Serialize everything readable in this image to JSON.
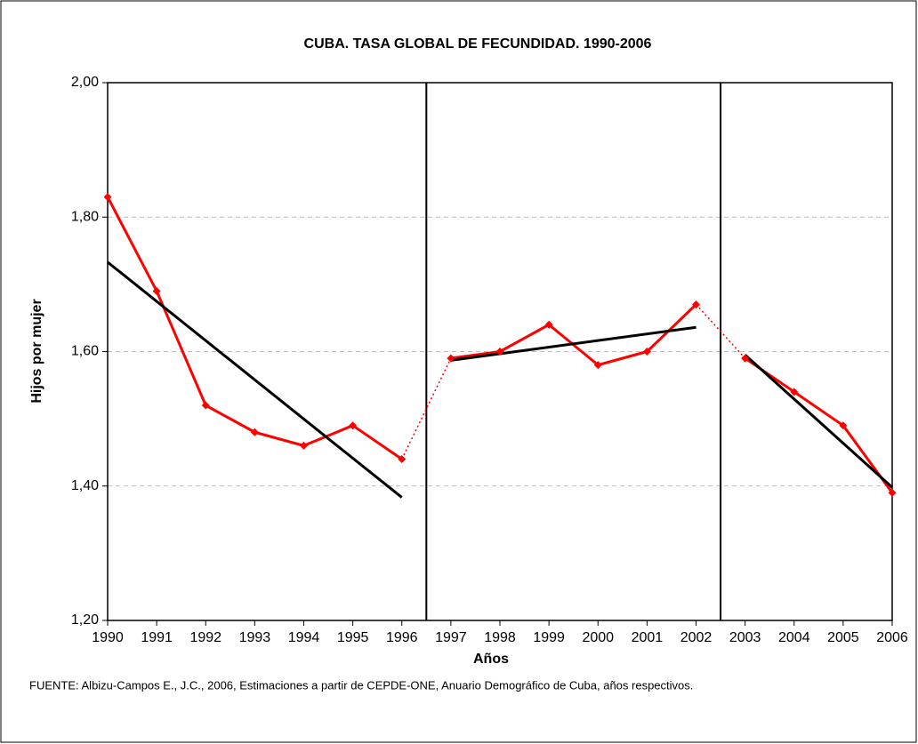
{
  "chart_data": {
    "type": "line",
    "title": "CUBA. TASA GLOBAL DE FECUNDIDAD. 1990-2006",
    "x_label": "Años",
    "y_label": "Hijos por mujer",
    "source": "FUENTE: Albizu-Campos E., J.C., 2006, Estimaciones a partir de CEPDE-ONE, Anuario Demográfico de Cuba, años respectivos.",
    "x": [
      1990,
      1991,
      1992,
      1993,
      1994,
      1995,
      1996,
      1997,
      1998,
      1999,
      2000,
      2001,
      2002,
      2003,
      2004,
      2005,
      2006
    ],
    "series": [
      {
        "color": "#ff0000",
        "values": [
          1.83,
          1.69,
          1.52,
          1.48,
          1.46,
          1.49,
          1.44,
          1.59,
          1.6,
          1.64,
          1.58,
          1.6,
          1.67,
          1.59,
          1.54,
          1.49,
          1.39
        ]
      }
    ],
    "trends": [
      {
        "color": "#000000",
        "x": [
          1990,
          1996
        ],
        "values": [
          1.733,
          1.383
        ]
      },
      {
        "color": "#000000",
        "x": [
          1997,
          2002
        ],
        "values": [
          1.587,
          1.636
        ]
      },
      {
        "color": "#000000",
        "x": [
          2003,
          2006
        ],
        "values": [
          1.595,
          1.398
        ]
      }
    ],
    "dividers": [
      1996.5,
      2002.5
    ],
    "xlim": [
      1990,
      2006
    ],
    "xticks": [
      1990,
      1991,
      1992,
      1993,
      1994,
      1995,
      1996,
      1997,
      1998,
      1999,
      2000,
      2001,
      2002,
      2003,
      2004,
      2005,
      2006
    ],
    "ylim": [
      1.2,
      2.0
    ],
    "yticks": [
      {
        "value": 1.2,
        "label": "1,20"
      },
      {
        "value": 1.4,
        "label": "1,40"
      },
      {
        "value": 1.6,
        "label": "1,60"
      },
      {
        "value": 1.8,
        "label": "1,80"
      },
      {
        "value": 2.0,
        "label": "2,00"
      }
    ],
    "grid": true
  }
}
